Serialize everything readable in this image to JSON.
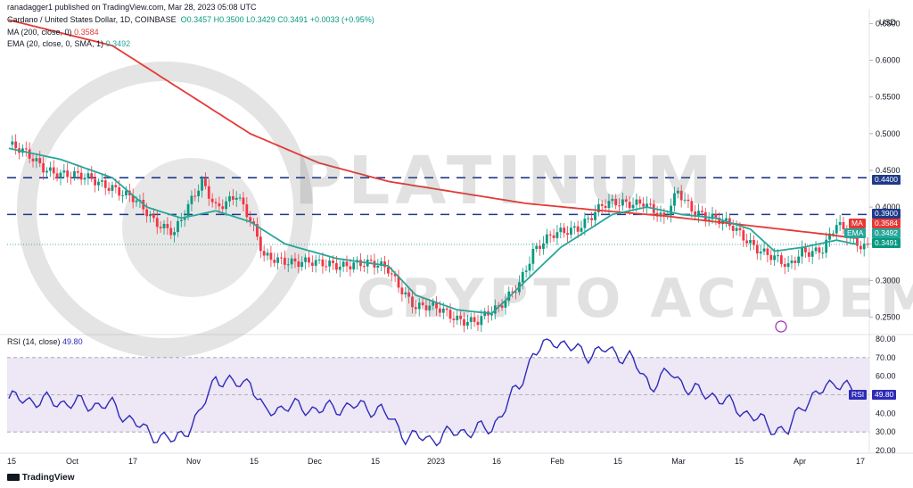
{
  "header": {
    "publisher": "ranadagger1 published on TradingView.com, Mar 28, 2023 05:08 UTC",
    "symbol": "Cardano / United States Dollar, 1D, COINBASE",
    "ohlc": "O0.3457  H0.3500  L0.3429  C0.3491  +0.0033 (+0.95%)",
    "ma_label": "MA (200, close, 0)",
    "ma_value": "0.3584",
    "ema_label": "EMA (20, close, 0, SMA, 1)",
    "ema_value": "0.3492",
    "rsi_label": "RSI (14, close)",
    "rsi_value": "49.80",
    "currency": "USD"
  },
  "footer": {
    "brand": "TradingView"
  },
  "watermark": {
    "line1": "PLATINUM",
    "line2": "CRYPTO ACADEMY"
  },
  "price_tags": {
    "level_high": "0.4400",
    "level_mid": "0.3900",
    "ma": "0.3584",
    "ema": "0.3492",
    "close": "0.3491",
    "ma_tag": "MA",
    "ema_tag": "EMA",
    "rsi_tag": "RSI",
    "rsi": "49.80"
  },
  "colors": {
    "up": "#089981",
    "down": "#f23645",
    "ma": "#e53935",
    "ema": "#26a69a",
    "rsi": "#2e2bb8",
    "levels": "#1e3a8a",
    "rsi_band": "#ede7f6"
  },
  "chart_data": [
    {
      "type": "candlestick",
      "title": "Cardano / United States Dollar, 1D, COINBASE",
      "ylabel": "USD",
      "ylim": [
        0.23,
        0.67
      ],
      "y_ticks": [
        "0.6500",
        "0.6000",
        "0.5500",
        "0.5000",
        "0.4500",
        "0.4000",
        "0.3500",
        "0.3000",
        "0.2500"
      ],
      "x_ticks": [
        "15",
        "Oct",
        "17",
        "Nov",
        "15",
        "Dec",
        "15",
        "2023",
        "16",
        "Feb",
        "15",
        "Mar",
        "15",
        "Apr",
        "17"
      ],
      "horizontal_levels": [
        0.44,
        0.39
      ],
      "series": [
        {
          "name": "MA (200, close, 0)",
          "anchors": [
            [
              0,
              0.655
            ],
            [
              30,
              0.62
            ],
            [
              55,
              0.545
            ],
            [
              70,
              0.5
            ],
            [
              90,
              0.46
            ],
            [
              110,
              0.435
            ],
            [
              130,
              0.42
            ],
            [
              150,
              0.405
            ],
            [
              170,
              0.396
            ],
            [
              190,
              0.388
            ],
            [
              205,
              0.38
            ],
            [
              220,
              0.372
            ],
            [
              235,
              0.364
            ],
            [
              245,
              0.358
            ]
          ]
        },
        {
          "name": "EMA (20, close, 0, SMA, 1)",
          "anchors": [
            [
              0,
              0.48
            ],
            [
              15,
              0.465
            ],
            [
              30,
              0.44
            ],
            [
              40,
              0.4
            ],
            [
              50,
              0.385
            ],
            [
              60,
              0.395
            ],
            [
              70,
              0.38
            ],
            [
              80,
              0.35
            ],
            [
              95,
              0.33
            ],
            [
              110,
              0.32
            ],
            [
              118,
              0.28
            ],
            [
              130,
              0.26
            ],
            [
              140,
              0.255
            ],
            [
              150,
              0.3
            ],
            [
              160,
              0.345
            ],
            [
              175,
              0.39
            ],
            [
              185,
              0.4
            ],
            [
              195,
              0.39
            ],
            [
              205,
              0.385
            ],
            [
              215,
              0.37
            ],
            [
              222,
              0.34
            ],
            [
              230,
              0.345
            ],
            [
              240,
              0.355
            ],
            [
              245,
              0.35
            ]
          ]
        },
        {
          "name": "close",
          "anchors": [
            [
              0,
              0.485
            ],
            [
              10,
              0.455
            ],
            [
              20,
              0.44
            ],
            [
              30,
              0.43
            ],
            [
              36,
              0.41
            ],
            [
              42,
              0.38
            ],
            [
              48,
              0.37
            ],
            [
              52,
              0.4
            ],
            [
              56,
              0.43
            ],
            [
              60,
              0.4
            ],
            [
              66,
              0.42
            ],
            [
              70,
              0.38
            ],
            [
              74,
              0.33
            ],
            [
              80,
              0.33
            ],
            [
              90,
              0.32
            ],
            [
              100,
              0.325
            ],
            [
              110,
              0.315
            ],
            [
              118,
              0.265
            ],
            [
              124,
              0.26
            ],
            [
              130,
              0.25
            ],
            [
              136,
              0.245
            ],
            [
              142,
              0.26
            ],
            [
              148,
              0.3
            ],
            [
              152,
              0.34
            ],
            [
              158,
              0.36
            ],
            [
              165,
              0.375
            ],
            [
              172,
              0.4
            ],
            [
              178,
              0.405
            ],
            [
              184,
              0.41
            ],
            [
              190,
              0.38
            ],
            [
              194,
              0.42
            ],
            [
              198,
              0.4
            ],
            [
              204,
              0.385
            ],
            [
              210,
              0.37
            ],
            [
              216,
              0.35
            ],
            [
              222,
              0.33
            ],
            [
              226,
              0.315
            ],
            [
              230,
              0.34
            ],
            [
              236,
              0.345
            ],
            [
              240,
              0.375
            ],
            [
              244,
              0.355
            ],
            [
              246,
              0.349
            ]
          ]
        }
      ],
      "last_close": 0.3491
    },
    {
      "type": "line",
      "title": "RSI (14, close)",
      "ylim": [
        20,
        80
      ],
      "y_ticks": [
        "80.00",
        "70.00",
        "60.00",
        "50.00",
        "40.00",
        "30.00",
        "20.00"
      ],
      "band": [
        30,
        70
      ],
      "midline": 50,
      "series": [
        {
          "name": "RSI (14, close)",
          "anchors": [
            [
              0,
              48
            ],
            [
              15,
              46
            ],
            [
              30,
              44
            ],
            [
              40,
              30
            ],
            [
              48,
              25
            ],
            [
              55,
              38
            ],
            [
              60,
              60
            ],
            [
              65,
              55
            ],
            [
              70,
              58
            ],
            [
              74,
              40
            ],
            [
              80,
              44
            ],
            [
              90,
              42
            ],
            [
              100,
              44
            ],
            [
              108,
              42
            ],
            [
              115,
              28
            ],
            [
              122,
              26
            ],
            [
              130,
              30
            ],
            [
              140,
              32
            ],
            [
              148,
              55
            ],
            [
              152,
              72
            ],
            [
              158,
              80
            ],
            [
              163,
              75
            ],
            [
              168,
              72
            ],
            [
              173,
              74
            ],
            [
              180,
              70
            ],
            [
              186,
              55
            ],
            [
              192,
              62
            ],
            [
              198,
              52
            ],
            [
              204,
              50
            ],
            [
              210,
              44
            ],
            [
              216,
              38
            ],
            [
              222,
              32
            ],
            [
              226,
              30
            ],
            [
              230,
              45
            ],
            [
              236,
              52
            ],
            [
              240,
              58
            ],
            [
              246,
              49.8
            ]
          ]
        }
      ],
      "last_value": 49.8
    }
  ]
}
